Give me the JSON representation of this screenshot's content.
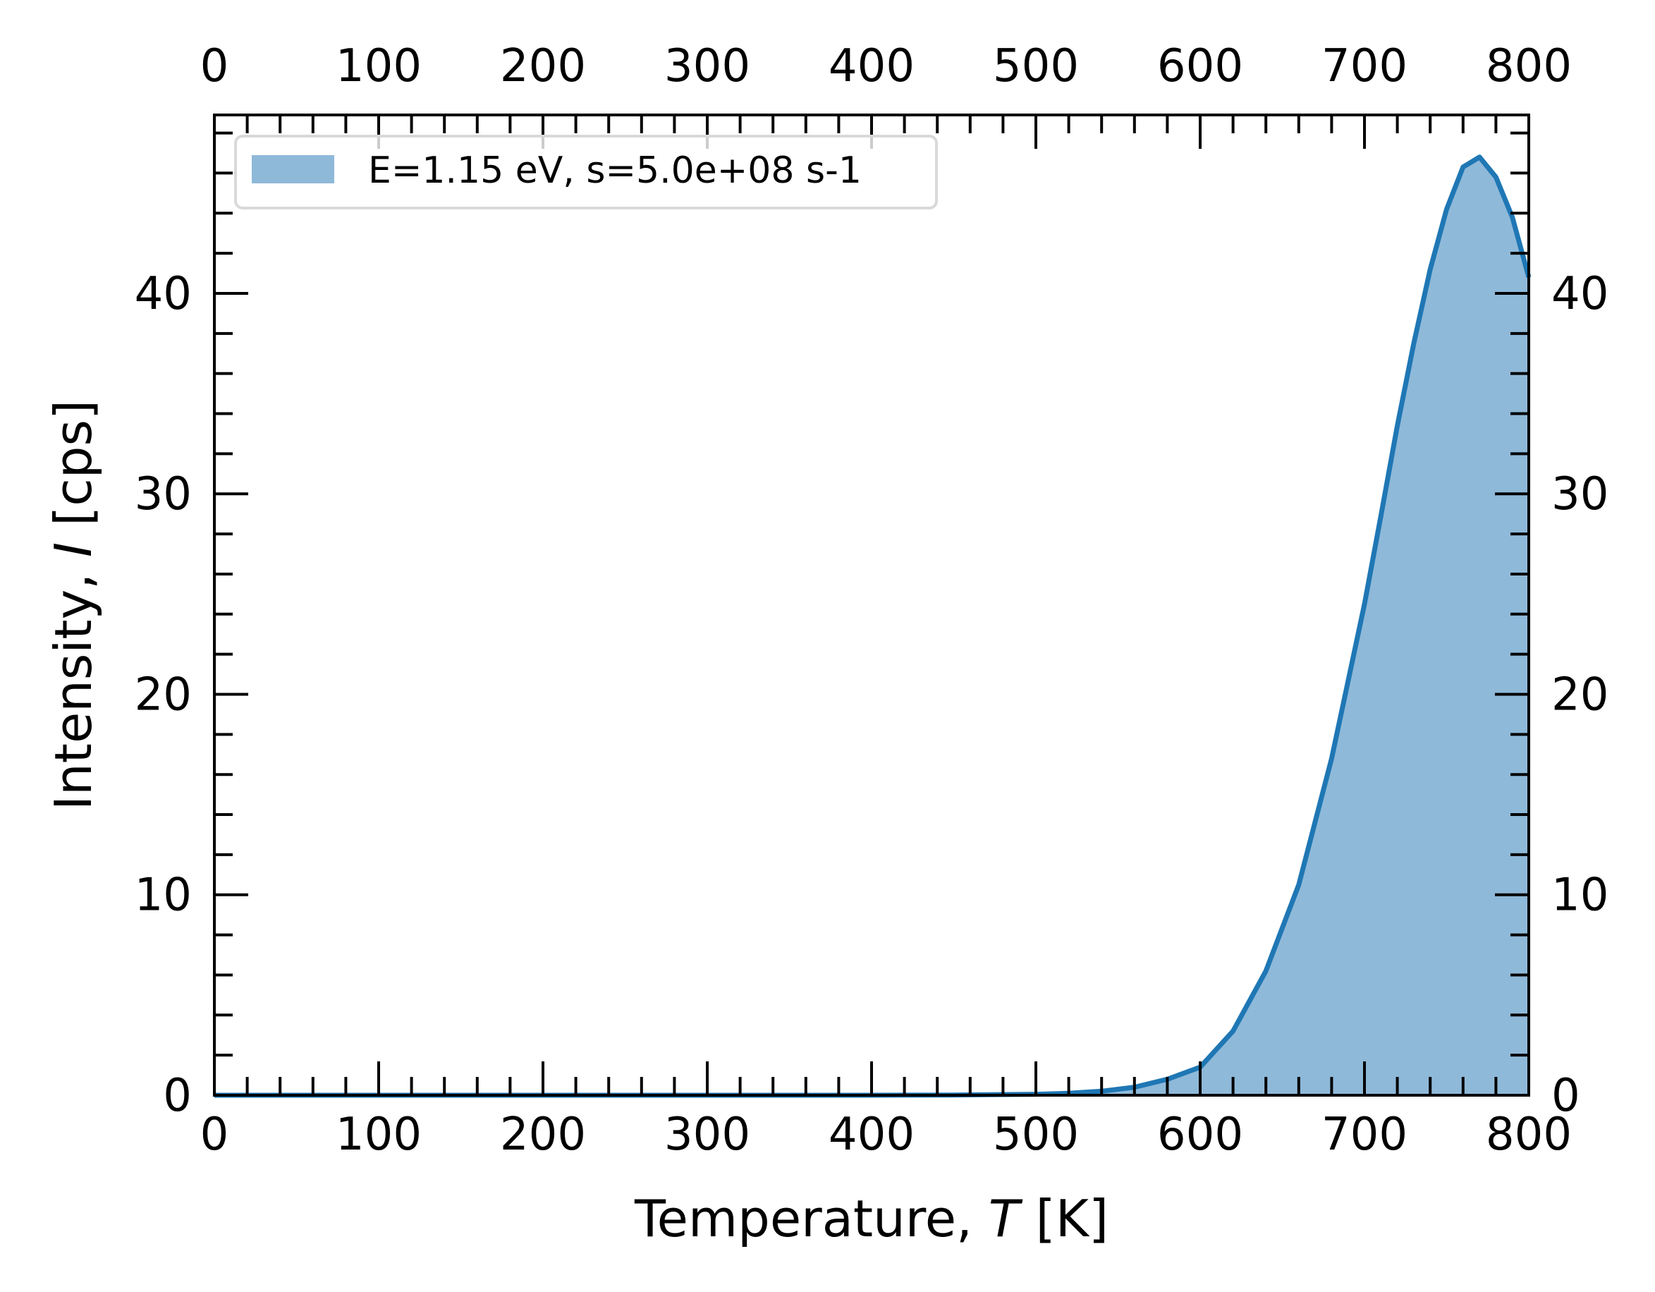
{
  "chart_data": {
    "type": "area",
    "title": "",
    "xlabel_prefix": "Temperature, ",
    "xlabel_var": "T",
    "xlabel_unit": " [K]",
    "ylabel_prefix": "Intensity, ",
    "ylabel_var": "I",
    "ylabel_unit": " [cps]",
    "xlim": [
      0,
      800
    ],
    "ylim": [
      0,
      48.9
    ],
    "xticks": [
      0,
      100,
      200,
      300,
      400,
      500,
      600,
      700,
      800
    ],
    "xtick_labels": [
      "0",
      "100",
      "200",
      "300",
      "400",
      "500",
      "600",
      "700",
      "800"
    ],
    "yticks": [
      0,
      10,
      20,
      30,
      40
    ],
    "ytick_labels": [
      "0",
      "10",
      "20",
      "30",
      "40"
    ],
    "x_minor_step": 20,
    "y_minor_step": 2,
    "top_axis_ticklabels": true,
    "right_axis_ticklabels": true,
    "grid": false,
    "legend": {
      "placement": "upper-left",
      "entries": [
        "E=1.15 eV, s=5.0e+08 s-1"
      ]
    },
    "colors": {
      "line": "#1f77b4",
      "fill": "#8fb9d9",
      "legend_border": "#d9d9d9"
    },
    "series": [
      {
        "name": "E=1.15 eV, s=5.0e+08 s-1",
        "x": [
          0,
          100,
          200,
          300,
          400,
          450,
          500,
          520,
          540,
          560,
          580,
          600,
          620,
          640,
          660,
          680,
          700,
          710,
          720,
          730,
          740,
          750,
          760,
          770,
          780,
          790,
          800
        ],
        "y": [
          0,
          0,
          0,
          0,
          0,
          0.01,
          0.05,
          0.1,
          0.2,
          0.4,
          0.8,
          1.4,
          3.2,
          6.2,
          10.5,
          16.8,
          24.5,
          28.9,
          33.4,
          37.5,
          41.2,
          44.2,
          46.3,
          46.8,
          45.8,
          43.8,
          40.8
        ]
      }
    ]
  }
}
